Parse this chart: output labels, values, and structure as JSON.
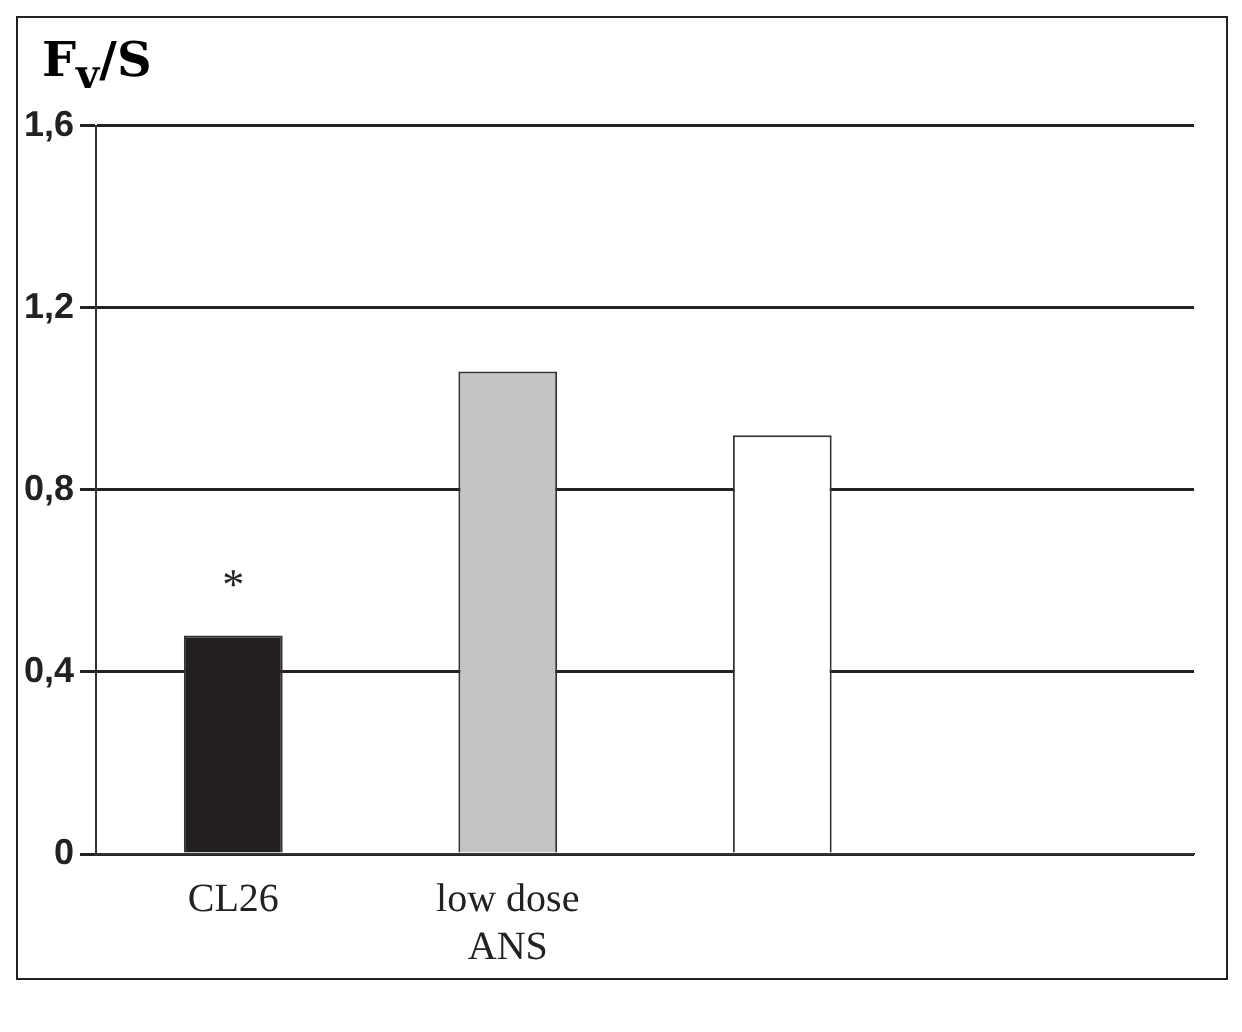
{
  "chart_data": {
    "type": "bar",
    "ylabel": "F$_{v}$/S",
    "categories": [
      "CL26",
      "low dose ANS",
      null,
      null
    ],
    "values": [
      0.48,
      1.06,
      0.92,
      null
    ],
    "colors": [
      "#231f20",
      "#c4c4c4",
      "#ffffff",
      null
    ],
    "ylim": [
      0,
      1.6
    ],
    "yticks": [
      {
        "value": 0,
        "label": "0"
      },
      {
        "value": 0.4,
        "label": "0,4"
      },
      {
        "value": 0.8,
        "label": "0,8"
      },
      {
        "value": 1.2,
        "label": "1,2"
      },
      {
        "value": 1.6,
        "label": "1,6"
      }
    ],
    "grid": "y",
    "annotations": [
      "*"
    ]
  }
}
